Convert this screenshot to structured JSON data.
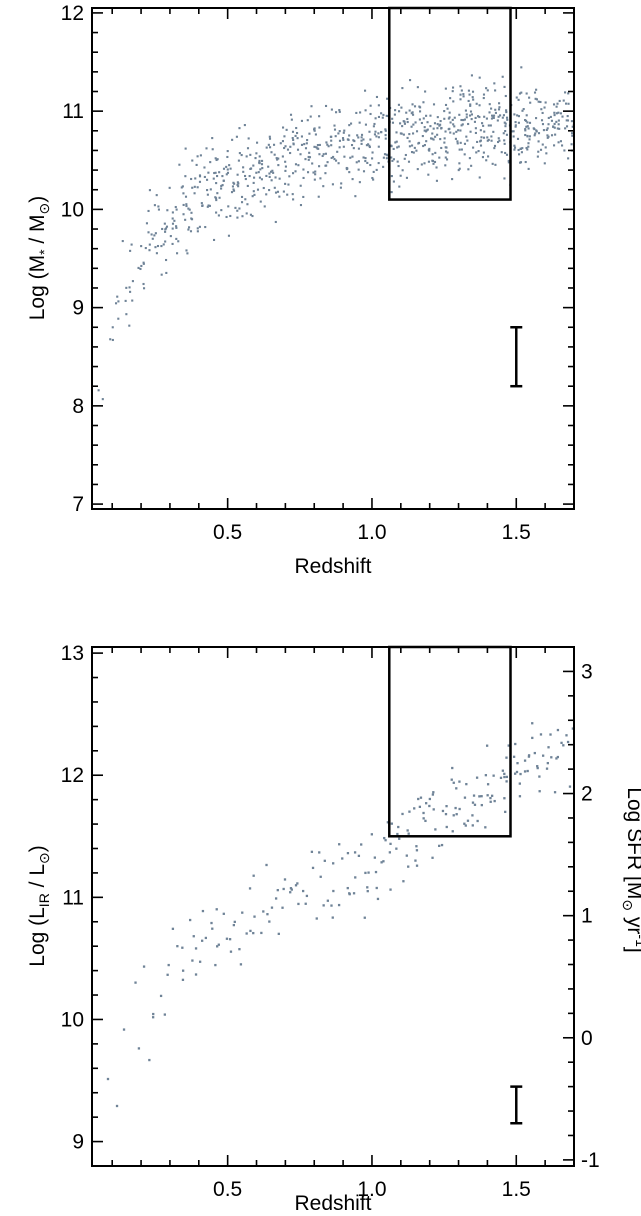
{
  "chart_data": [
    {
      "type": "scatter",
      "title": "",
      "xlabel": "Redshift",
      "ylabel": "Log (M* / M⊙)",
      "ylabel_parts": {
        "pre": "Log (M",
        "sub": "*",
        "mid": " / M",
        "sub2": "⊙",
        "post": ")"
      },
      "xlim": [
        0.03,
        1.7
      ],
      "ylim": [
        6.95,
        12.05
      ],
      "x_ticks": [
        0.5,
        1.0,
        1.5
      ],
      "x_tick_labels": [
        "0.5",
        "1.0",
        "1.5"
      ],
      "y_ticks": [
        7,
        8,
        9,
        10,
        11,
        12
      ],
      "y_tick_labels": [
        "7",
        "8",
        "9",
        "10",
        "11",
        "12"
      ],
      "grid": false,
      "point_color": "#6f8397",
      "series": [
        {
          "values_description_free": true,
          "envelope": {
            "z": [
              0.05,
              0.1,
              0.2,
              0.3,
              0.4,
              0.5,
              0.6,
              0.7,
              0.8,
              0.9,
              1.0,
              1.1,
              1.2,
              1.3,
              1.4,
              1.5,
              1.6,
              1.7
            ],
            "lower": [
              7.7,
              8.4,
              8.9,
              9.2,
              9.45,
              9.6,
              9.7,
              9.8,
              9.9,
              9.95,
              10.0,
              10.05,
              10.1,
              10.1,
              10.15,
              10.15,
              10.2,
              10.25
            ],
            "upper": [
              8.7,
              9.5,
              10.2,
              10.6,
              10.9,
              11.05,
              11.15,
              11.25,
              11.3,
              11.35,
              11.4,
              11.45,
              11.45,
              11.5,
              11.5,
              11.5,
              11.5,
              11.5
            ],
            "density": [
              40,
              130,
              320,
              430,
              520,
              560,
              560,
              560,
              540,
              520,
              600,
              680,
              700,
              720,
              720,
              720,
              620,
              420
            ]
          }
        }
      ],
      "selection_box": {
        "x": [
          1.06,
          1.48
        ],
        "y": [
          10.1,
          12.05
        ]
      },
      "error_bar": {
        "x": 1.5,
        "y": [
          8.2,
          8.8
        ]
      }
    },
    {
      "type": "scatter",
      "title": "",
      "xlabel": "Redshift",
      "ylabel": "Log (LIR / L⊙)",
      "ylabel_parts": {
        "pre": "Log (L",
        "sub": "IR",
        "mid": " / L",
        "sub2": "⊙",
        "post": ")"
      },
      "y2label_parts": {
        "pre": "Log SFR [M",
        "sub": "⊙",
        "mid": " yr",
        "sup": "-1",
        "post": "]"
      },
      "xlim": [
        0.03,
        1.7
      ],
      "ylim": [
        8.8,
        13.05
      ],
      "y2lim": [
        -1.05,
        3.2
      ],
      "x_ticks": [
        0.5,
        1.0,
        1.5
      ],
      "x_tick_labels": [
        "0.5",
        "1.0",
        "1.5"
      ],
      "y_ticks": [
        9,
        10,
        11,
        12,
        13
      ],
      "y_tick_labels": [
        "9",
        "10",
        "11",
        "12",
        "13"
      ],
      "y2_ticks": [
        -1,
        0,
        1,
        2,
        3
      ],
      "y2_tick_labels": [
        "-1",
        "0",
        "1",
        "2",
        "3"
      ],
      "grid": false,
      "point_color": "#6f8397",
      "series": [
        {
          "envelope": {
            "z": [
              0.05,
              0.1,
              0.2,
              0.3,
              0.4,
              0.5,
              0.6,
              0.7,
              0.8,
              0.9,
              1.0,
              1.1,
              1.2,
              1.3,
              1.4,
              1.5,
              1.6,
              1.7
            ],
            "lower": [
              8.9,
              9.0,
              9.4,
              9.9,
              10.2,
              10.3,
              10.4,
              10.45,
              10.5,
              10.6,
              10.75,
              11.0,
              11.15,
              11.3,
              11.4,
              11.5,
              11.6,
              11.6
            ],
            "upper": [
              9.5,
              10.2,
              10.7,
              11.0,
              11.2,
              11.35,
              11.45,
              11.55,
              11.65,
              11.75,
              11.85,
              12.0,
              12.1,
              12.2,
              12.3,
              12.5,
              12.7,
              12.75
            ],
            "density": [
              15,
              30,
              60,
              90,
              120,
              140,
              130,
              130,
              130,
              140,
              170,
              190,
              190,
              200,
              200,
              210,
              170,
              110
            ]
          }
        }
      ],
      "selection_box": {
        "x": [
          1.06,
          1.48
        ],
        "y": [
          11.5,
          13.05
        ]
      },
      "error_bar": {
        "x": 1.5,
        "y": [
          9.15,
          9.45
        ]
      }
    }
  ]
}
